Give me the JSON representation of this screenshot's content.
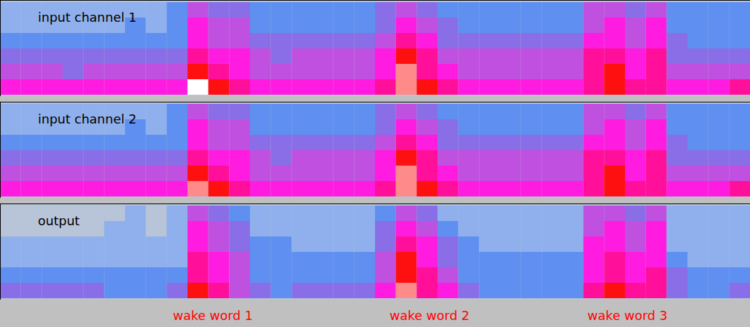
{
  "chart_data": {
    "type": "heatmap",
    "tick_labels": false,
    "xlim": [
      0,
      36
    ],
    "zlim": [
      0,
      9
    ],
    "panels": [
      {
        "title": "input channel 1",
        "cells": [
          [
            1,
            1,
            1,
            1,
            1,
            1,
            1,
            1,
            2,
            4,
            3,
            3,
            2,
            2,
            2,
            2,
            2,
            2,
            3,
            4,
            3,
            2,
            2,
            2,
            2,
            2,
            2,
            2,
            4,
            4,
            3,
            4,
            2,
            2,
            2,
            2
          ],
          [
            1,
            1,
            1,
            1,
            1,
            1,
            2,
            1,
            2,
            5,
            4,
            4,
            2,
            2,
            2,
            2,
            2,
            2,
            3,
            5,
            4,
            3,
            2,
            2,
            2,
            2,
            2,
            2,
            4,
            5,
            4,
            5,
            2,
            2,
            2,
            2
          ],
          [
            2,
            2,
            2,
            2,
            2,
            2,
            2,
            2,
            2,
            5,
            4,
            4,
            3,
            3,
            3,
            3,
            3,
            3,
            4,
            6,
            5,
            3,
            3,
            3,
            3,
            3,
            3,
            3,
            5,
            5,
            4,
            5,
            3,
            2,
            2,
            2
          ],
          [
            3,
            3,
            3,
            3,
            3,
            3,
            3,
            3,
            3,
            6,
            5,
            5,
            4,
            3,
            4,
            4,
            4,
            4,
            5,
            7,
            6,
            4,
            4,
            4,
            4,
            4,
            4,
            4,
            6,
            6,
            5,
            6,
            3,
            3,
            3,
            3
          ],
          [
            4,
            4,
            4,
            3,
            4,
            4,
            4,
            4,
            4,
            7,
            6,
            5,
            4,
            4,
            4,
            4,
            4,
            4,
            5,
            8,
            6,
            5,
            4,
            4,
            4,
            4,
            4,
            4,
            6,
            7,
            5,
            6,
            4,
            4,
            4,
            4
          ],
          [
            5,
            5,
            5,
            5,
            5,
            5,
            5,
            5,
            5,
            9,
            7,
            6,
            5,
            5,
            5,
            5,
            5,
            5,
            6,
            8,
            7,
            6,
            5,
            5,
            5,
            5,
            5,
            5,
            6,
            7,
            6,
            6,
            5,
            5,
            5,
            6
          ]
        ]
      },
      {
        "title": "input channel 2",
        "cells": [
          [
            1,
            1,
            1,
            1,
            1,
            1,
            1,
            1,
            2,
            4,
            3,
            3,
            2,
            2,
            2,
            2,
            2,
            2,
            3,
            4,
            3,
            2,
            2,
            2,
            2,
            2,
            2,
            2,
            4,
            4,
            3,
            4,
            2,
            2,
            2,
            2
          ],
          [
            1,
            1,
            1,
            1,
            1,
            1,
            2,
            1,
            2,
            5,
            4,
            4,
            2,
            2,
            2,
            2,
            2,
            2,
            3,
            5,
            4,
            3,
            2,
            2,
            2,
            2,
            2,
            2,
            4,
            5,
            4,
            5,
            2,
            2,
            2,
            2
          ],
          [
            2,
            2,
            2,
            2,
            2,
            2,
            2,
            2,
            2,
            5,
            4,
            4,
            3,
            3,
            3,
            3,
            3,
            3,
            4,
            6,
            5,
            3,
            3,
            3,
            3,
            3,
            3,
            3,
            5,
            5,
            4,
            5,
            3,
            2,
            2,
            2
          ],
          [
            3,
            3,
            3,
            3,
            3,
            3,
            3,
            3,
            3,
            6,
            5,
            5,
            4,
            3,
            4,
            4,
            4,
            4,
            5,
            7,
            6,
            4,
            4,
            4,
            4,
            4,
            4,
            4,
            6,
            6,
            5,
            6,
            3,
            3,
            3,
            3
          ],
          [
            4,
            4,
            4,
            4,
            4,
            4,
            4,
            4,
            4,
            7,
            6,
            5,
            4,
            4,
            4,
            4,
            4,
            4,
            5,
            8,
            6,
            5,
            4,
            4,
            4,
            4,
            4,
            4,
            6,
            7,
            5,
            6,
            4,
            4,
            4,
            4
          ],
          [
            5,
            5,
            5,
            5,
            5,
            5,
            5,
            5,
            5,
            8,
            7,
            6,
            5,
            5,
            5,
            5,
            5,
            5,
            6,
            8,
            7,
            6,
            5,
            5,
            5,
            5,
            5,
            5,
            6,
            7,
            6,
            6,
            5,
            5,
            5,
            6
          ]
        ]
      },
      {
        "title": "output",
        "cells": [
          [
            0,
            0,
            0,
            0,
            0,
            0,
            1,
            0,
            1,
            4,
            3,
            2,
            1,
            1,
            1,
            1,
            1,
            1,
            2,
            4,
            3,
            1,
            1,
            1,
            1,
            1,
            1,
            1,
            4,
            4,
            3,
            4,
            1,
            1,
            1,
            1
          ],
          [
            0,
            0,
            0,
            0,
            0,
            1,
            1,
            0,
            1,
            5,
            4,
            3,
            1,
            1,
            1,
            1,
            1,
            1,
            3,
            5,
            4,
            2,
            1,
            1,
            1,
            1,
            1,
            1,
            4,
            5,
            4,
            5,
            1,
            1,
            1,
            1
          ],
          [
            1,
            1,
            1,
            1,
            1,
            1,
            1,
            1,
            1,
            5,
            4,
            3,
            2,
            2,
            1,
            1,
            1,
            1,
            3,
            6,
            5,
            3,
            2,
            1,
            1,
            1,
            1,
            1,
            5,
            5,
            4,
            5,
            1,
            1,
            1,
            1
          ],
          [
            1,
            1,
            1,
            1,
            1,
            1,
            1,
            1,
            1,
            6,
            5,
            4,
            2,
            2,
            2,
            2,
            2,
            2,
            4,
            7,
            5,
            3,
            2,
            2,
            2,
            2,
            2,
            2,
            5,
            6,
            5,
            5,
            2,
            1,
            1,
            1
          ],
          [
            2,
            2,
            2,
            2,
            2,
            2,
            2,
            2,
            2,
            6,
            5,
            4,
            2,
            2,
            2,
            2,
            2,
            2,
            4,
            7,
            6,
            4,
            2,
            2,
            2,
            2,
            2,
            2,
            5,
            6,
            5,
            6,
            3,
            2,
            2,
            2
          ],
          [
            3,
            3,
            3,
            3,
            3,
            2,
            2,
            2,
            3,
            7,
            6,
            4,
            3,
            2,
            3,
            3,
            3,
            3,
            5,
            8,
            6,
            5,
            3,
            2,
            2,
            2,
            2,
            2,
            6,
            7,
            6,
            6,
            3,
            2,
            2,
            3
          ]
        ]
      }
    ],
    "annotations": [
      {
        "text": "wake word 1",
        "x": 10.2
      },
      {
        "text": "wake word 2",
        "x": 20.6
      },
      {
        "text": "wake word 3",
        "x": 30.1
      }
    ]
  }
}
